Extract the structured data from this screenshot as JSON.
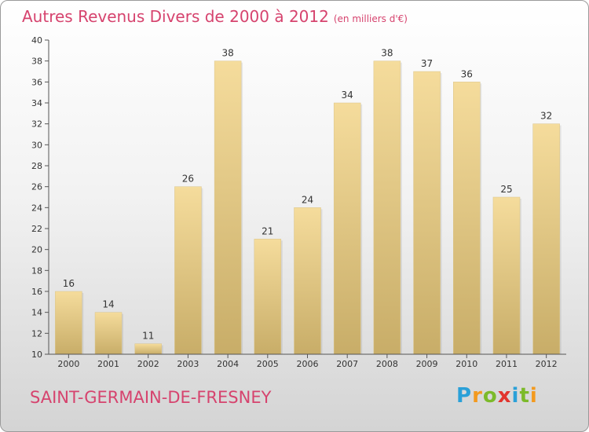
{
  "header": {
    "title": "Autres Revenus Divers de 2000 à 2012",
    "unit": "(en milliers d'€)"
  },
  "footer": {
    "location": "SAINT-GERMAIN-DE-FRESNEY",
    "logo_letters": [
      "P",
      "r",
      "o",
      "x",
      "i",
      "t",
      "i"
    ]
  },
  "colors": {
    "title": "#d6436e",
    "bar_light": "#f5dc9c",
    "bar_dark": "#c8ad68",
    "axis": "#555555"
  },
  "chart_data": {
    "type": "bar",
    "categories": [
      "2000",
      "2001",
      "2002",
      "2003",
      "2004",
      "2005",
      "2006",
      "2007",
      "2008",
      "2009",
      "2010",
      "2011",
      "2012"
    ],
    "values": [
      16,
      14,
      11,
      26,
      38,
      21,
      24,
      34,
      38,
      37,
      36,
      25,
      32
    ],
    "ylim": [
      10,
      40
    ],
    "yticks": [
      "10",
      "12",
      "14",
      "16",
      "18",
      "20",
      "22",
      "24",
      "26",
      "28",
      "30",
      "32",
      "34",
      "36",
      "38",
      "40"
    ],
    "grid": false,
    "legend": "none"
  }
}
